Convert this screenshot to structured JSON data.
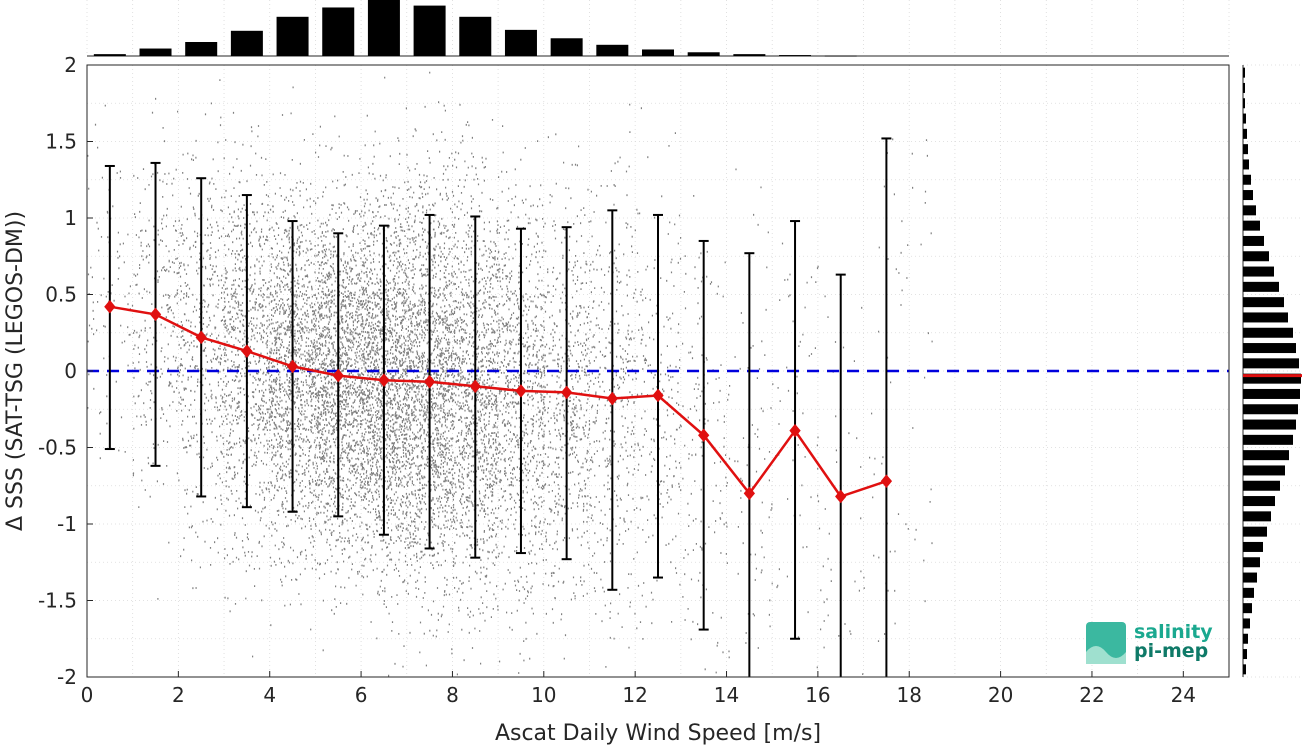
{
  "chart_data": {
    "type": "scatter",
    "title": "",
    "xlabel": "Ascat Daily Wind Speed [m/s]",
    "ylabel": "Δ SSS (SAT-TSG (LEGOS-DM))",
    "xlim": [
      0,
      25
    ],
    "ylim": [
      -2,
      2
    ],
    "xticks": [
      "0",
      "2",
      "4",
      "6",
      "8",
      "10",
      "12",
      "14",
      "16",
      "18",
      "20",
      "22",
      "24"
    ],
    "yticks": [
      "2",
      "1.5",
      "1",
      "0.5",
      "0",
      "-0.5",
      "-1",
      "-1.5",
      "-2"
    ],
    "grid": true,
    "zero_line": {
      "y": 0,
      "color": "#0000dd",
      "style": "dashed"
    },
    "scatter_color": "#808080",
    "mean_line_color": "#e01010",
    "errorbar_color": "#000000",
    "binned": {
      "x": [
        0.5,
        1.5,
        2.5,
        3.5,
        4.5,
        5.5,
        6.5,
        7.5,
        8.5,
        9.5,
        10.5,
        11.5,
        12.5,
        13.5,
        14.5,
        15.5,
        16.5,
        17.5
      ],
      "mean": [
        0.42,
        0.37,
        0.22,
        0.13,
        0.03,
        -0.03,
        -0.06,
        -0.07,
        -0.1,
        -0.13,
        -0.14,
        -0.18,
        -0.16,
        -0.42,
        -0.8,
        -0.39,
        -0.82,
        -0.72
      ],
      "upper": [
        1.34,
        1.36,
        1.26,
        1.15,
        0.98,
        0.9,
        0.95,
        1.02,
        1.01,
        0.93,
        0.94,
        1.05,
        1.02,
        0.85,
        0.77,
        0.98,
        0.63,
        1.52
      ],
      "lower": [
        -0.51,
        -0.62,
        -0.82,
        -0.89,
        -0.92,
        -0.95,
        -1.07,
        -1.16,
        -1.22,
        -1.19,
        -1.23,
        -1.43,
        -1.35,
        -1.69,
        -2.0,
        -1.75,
        -2.0,
        -2.0
      ]
    },
    "top_histogram": {
      "x": [
        0.5,
        1.5,
        2.5,
        3.5,
        4.5,
        5.5,
        6.5,
        7.5,
        8.5,
        9.5,
        10.5,
        11.5,
        12.5,
        13.5,
        14.5,
        15.5,
        16.5
      ],
      "counts": [
        2,
        8,
        15,
        27,
        42,
        52,
        60,
        54,
        42,
        28,
        19,
        12,
        7,
        4,
        2,
        1,
        0.5
      ]
    },
    "right_histogram": {
      "y": [
        1.95,
        1.85,
        1.75,
        1.65,
        1.55,
        1.45,
        1.35,
        1.25,
        1.15,
        1.05,
        0.95,
        0.85,
        0.75,
        0.65,
        0.55,
        0.45,
        0.35,
        0.25,
        0.15,
        0.05,
        -0.05,
        -0.15,
        -0.25,
        -0.35,
        -0.45,
        -0.55,
        -0.65,
        -0.75,
        -0.85,
        -0.95,
        -1.05,
        -1.15,
        -1.25,
        -1.35,
        -1.45,
        -1.55,
        -1.65,
        -1.75,
        -1.85,
        -1.95
      ],
      "counts": [
        1,
        1.5,
        2,
        3,
        4,
        5,
        6,
        8,
        10,
        13,
        17,
        21,
        26,
        31,
        36,
        41,
        45,
        50,
        53,
        56,
        58,
        57,
        55,
        53,
        50,
        46,
        42,
        37,
        32,
        28,
        24,
        20,
        17,
        14,
        11,
        9,
        7,
        5,
        4,
        3
      ],
      "mean_marker": -0.03
    },
    "logo": {
      "line1": "salinity",
      "line2": "pi-mep"
    }
  }
}
